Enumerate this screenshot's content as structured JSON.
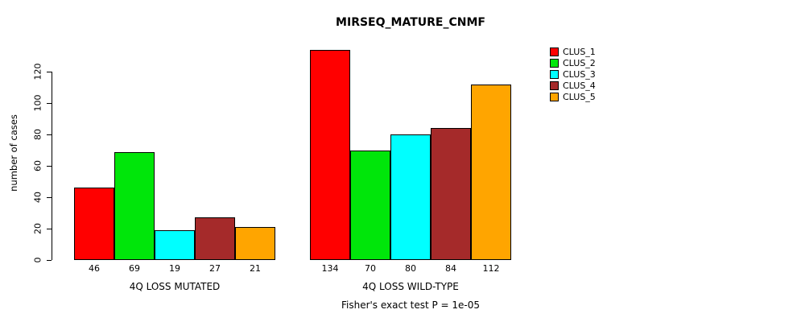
{
  "title": "MIRSEQ_MATURE_CNMF",
  "footer": "Fisher's exact test P = 1e-05",
  "chart_data": {
    "type": "bar",
    "title": "MIRSEQ_MATURE_CNMF",
    "ylabel": "number of cases",
    "xlabel": "",
    "annotation": "Fisher's exact test P = 1e-05",
    "groups": [
      {
        "label": "4Q LOSS MUTATED",
        "values": [
          46,
          69,
          19,
          27,
          21
        ]
      },
      {
        "label": "4Q LOSS WILD-TYPE",
        "values": [
          134,
          70,
          80,
          84,
          112
        ]
      }
    ],
    "series": [
      {
        "name": "CLUS_1",
        "color": "#ff0000"
      },
      {
        "name": "CLUS_2",
        "color": "#00e60a"
      },
      {
        "name": "CLUS_3",
        "color": "#00ffff"
      },
      {
        "name": "CLUS_4",
        "color": "#a52a2a"
      },
      {
        "name": "CLUS_5",
        "color": "#ffa500"
      }
    ],
    "yticks": [
      0,
      20,
      40,
      60,
      80,
      100,
      120
    ],
    "ylim": [
      0,
      137
    ],
    "grid": false,
    "legend_position": "right"
  }
}
